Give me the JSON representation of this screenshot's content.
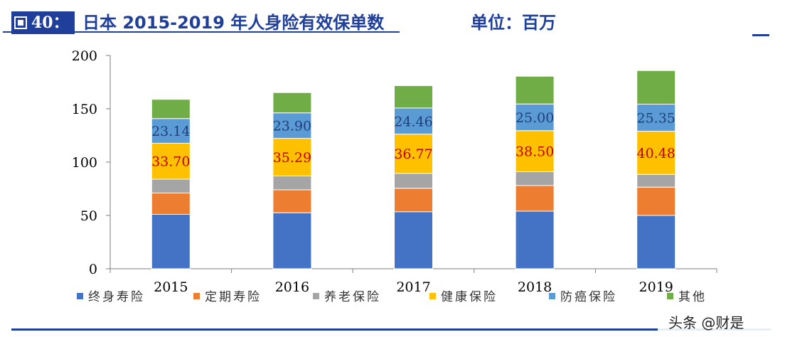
{
  "header": {
    "figure_label": "40：",
    "title": "日本 2015-2019 年人身险有效保单数",
    "unit": "单位：百万"
  },
  "watermark": "头条 @财是",
  "colors": {
    "accent": "#1f3f9a",
    "终身寿险": "#4472c4",
    "定期寿险": "#ed7d31",
    "养老保险": "#a5a5a5",
    "健康保险": "#ffc000",
    "防癌保险": "#5b9bd5",
    "其他": "#70ad47"
  },
  "chart_data": {
    "type": "bar",
    "stacked": true,
    "categories": [
      "2015",
      "2016",
      "2017",
      "2018",
      "2019"
    ],
    "ylim": [
      0,
      200
    ],
    "yticks": [
      0,
      50,
      100,
      150,
      200
    ],
    "grid": false,
    "legend_position": "bottom",
    "series": [
      {
        "name": "终身寿险",
        "values": [
          51,
          52.5,
          53.5,
          54,
          50
        ]
      },
      {
        "name": "定期寿险",
        "values": [
          20,
          21.5,
          22,
          24,
          26.5
        ]
      },
      {
        "name": "养老保险",
        "values": [
          13,
          13,
          14,
          13,
          12
        ]
      },
      {
        "name": "健康保险",
        "values": [
          33.7,
          35.29,
          36.77,
          38.5,
          40.48
        ],
        "labels": [
          "33.70",
          "35.29",
          "36.77",
          "38.50",
          "40.48"
        ]
      },
      {
        "name": "防癌保险",
        "values": [
          23.14,
          23.9,
          24.46,
          25.0,
          25.35
        ],
        "labels": [
          "23.14",
          "23.90",
          "24.46",
          "25.00",
          "25.35"
        ]
      },
      {
        "name": "其他",
        "values": [
          18,
          19,
          21,
          26,
          31.5
        ]
      }
    ]
  }
}
